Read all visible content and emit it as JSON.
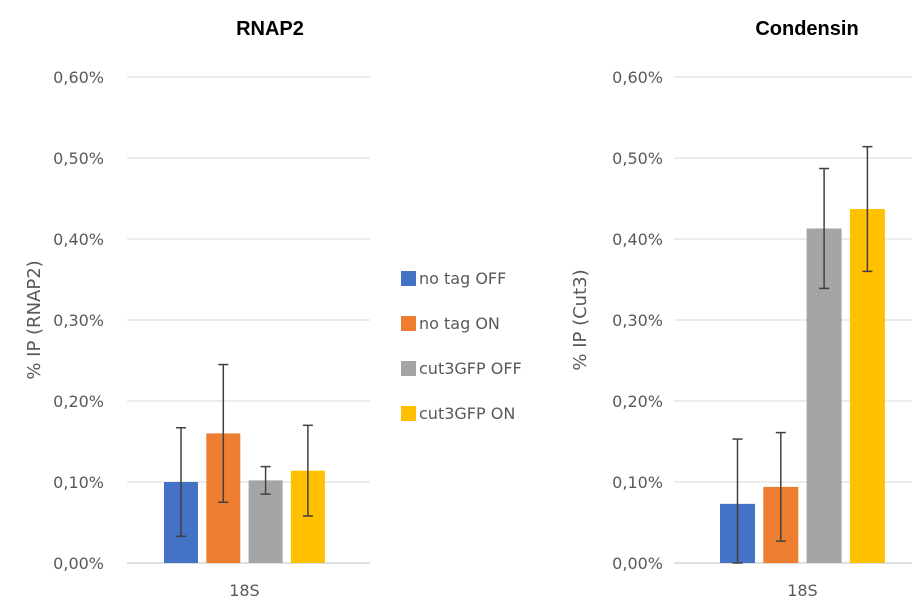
{
  "chart_data": [
    {
      "type": "bar",
      "title": "RNAP2",
      "xlabel": "",
      "ylabel": "% IP (RNAP2)",
      "categories": [
        "18S"
      ],
      "ylim": [
        0,
        0.006
      ],
      "yticks": [
        "0,00%",
        "0,10%",
        "0,20%",
        "0,30%",
        "0,40%",
        "0,50%",
        "0,60%"
      ],
      "grid": true,
      "series": [
        {
          "name": "no tag OFF",
          "color": "#4472C4",
          "values": [
            0.001
          ],
          "error": [
            0.00067
          ]
        },
        {
          "name": "no tag ON",
          "color": "#ED7D31",
          "values": [
            0.0016
          ],
          "error": [
            0.00085
          ]
        },
        {
          "name": "cut3GFP OFF",
          "color": "#A5A5A5",
          "values": [
            0.00102
          ],
          "error": [
            0.00017
          ]
        },
        {
          "name": "cut3GFP ON",
          "color": "#FFC000",
          "values": [
            0.00114
          ],
          "error": [
            0.00056
          ]
        }
      ]
    },
    {
      "type": "bar",
      "title": "Condensin",
      "xlabel": "",
      "ylabel": "% IP (Cut3)",
      "categories": [
        "18S"
      ],
      "ylim": [
        0,
        0.006
      ],
      "yticks": [
        "0,00%",
        "0,10%",
        "0,20%",
        "0,30%",
        "0,40%",
        "0,50%",
        "0,60%"
      ],
      "grid": true,
      "series": [
        {
          "name": "no tag OFF",
          "color": "#4472C4",
          "values": [
            0.00073
          ],
          "error": [
            0.0008
          ]
        },
        {
          "name": "no tag ON",
          "color": "#ED7D31",
          "values": [
            0.00094
          ],
          "error": [
            0.00067
          ]
        },
        {
          "name": "cut3GFP OFF",
          "color": "#A5A5A5",
          "values": [
            0.00413
          ],
          "error": [
            0.00074
          ]
        },
        {
          "name": "cut3GFP ON",
          "color": "#FFC000",
          "values": [
            0.00437
          ],
          "error": [
            0.00077
          ]
        }
      ]
    }
  ],
  "legend": {
    "placement": "between charts",
    "items": [
      {
        "label": "no tag OFF",
        "color": "#4472C4"
      },
      {
        "label": "no tag ON",
        "color": "#ED7D31"
      },
      {
        "label": "cut3GFP OFF",
        "color": "#A5A5A5"
      },
      {
        "label": "cut3GFP ON",
        "color": "#FFC000"
      }
    ]
  },
  "colors": {
    "grid": "#D9D9D9",
    "error_bar": "#404040",
    "text": "#595959"
  }
}
